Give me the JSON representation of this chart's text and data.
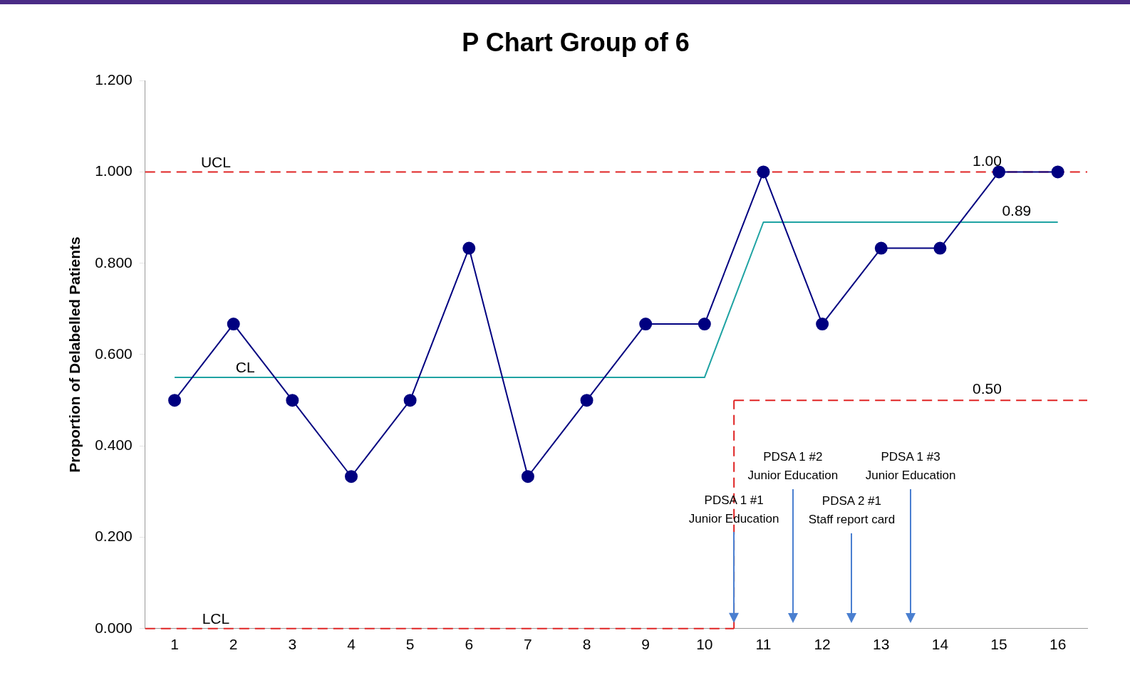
{
  "chart_data": {
    "type": "line",
    "title": "P Chart Group of 6",
    "ylabel": "Proportion of Delabelled Patients",
    "xlim": [
      0.5,
      16.5
    ],
    "xticks": [
      1,
      2,
      3,
      4,
      5,
      6,
      7,
      8,
      9,
      10,
      11,
      12,
      13,
      14,
      15,
      16
    ],
    "ylim": [
      0,
      1.2
    ],
    "yticks": [
      {
        "value": 0,
        "label": "0.000"
      },
      {
        "value": 0.2,
        "label": "0.200"
      },
      {
        "value": 0.4,
        "label": "0.400"
      },
      {
        "value": 0.6,
        "label": "0.600"
      },
      {
        "value": 0.8,
        "label": "0.800"
      },
      {
        "value": 1.0,
        "label": "1.000"
      },
      {
        "value": 1.2,
        "label": "1.200"
      }
    ],
    "grid": false,
    "legend": false,
    "series": [
      {
        "color": "#000080",
        "marker": "circle",
        "line_style": "solid",
        "x": [
          1,
          2,
          3,
          4,
          5,
          6,
          7,
          8,
          9,
          10,
          11,
          12,
          13,
          14,
          15,
          16
        ],
        "values": [
          0.5,
          0.667,
          0.5,
          0.333,
          0.5,
          0.833,
          0.333,
          0.5,
          0.667,
          0.667,
          1.0,
          0.667,
          0.833,
          0.833,
          1.0,
          1.0
        ]
      },
      {
        "name": "CL",
        "color": "#1fa3a3",
        "marker": "none",
        "line_style": "solid",
        "x": [
          1,
          10,
          11,
          16
        ],
        "values": [
          0.55,
          0.55,
          0.89,
          0.89
        ]
      },
      {
        "name": "UCL",
        "color": "#e02424",
        "marker": "none",
        "line_style": "dashed",
        "x": [
          0.5,
          16.5
        ],
        "values": [
          1.0,
          1.0
        ]
      },
      {
        "name": "LCL",
        "color": "#e02424",
        "marker": "none",
        "line_style": "dashed",
        "x": [
          0.5,
          10.5
        ],
        "values": [
          0,
          0
        ]
      },
      {
        "color": "#e02424",
        "marker": "none",
        "line_style": "dashed",
        "x": [
          10.5,
          10.5
        ],
        "values": [
          0,
          0.5
        ]
      },
      {
        "color": "#e02424",
        "marker": "none",
        "line_style": "dashed",
        "x": [
          10.5,
          16.5
        ],
        "values": [
          0.5,
          0.5
        ]
      }
    ],
    "annotations": [
      {
        "text": "1.00",
        "x": 14.8,
        "y": 1.0
      },
      {
        "text": "0.89",
        "x": 15.3,
        "y": 0.89
      },
      {
        "text": "0.50",
        "x": 14.8,
        "y": 0.5
      },
      {
        "text": "PDSA 1 #1\nJunior Education",
        "x": 10.5,
        "y": 0.26
      },
      "PDSA 1 #2\nJunior Education",
      "PDSA 2 #1\nStaff report card",
      "PDSA 1 #3\nJunior Education"
    ]
  }
}
